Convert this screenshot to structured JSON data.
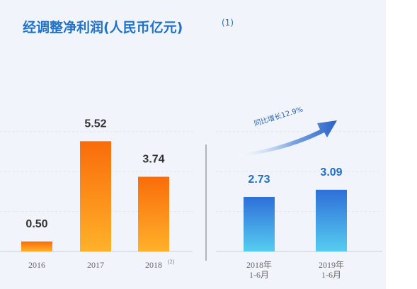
{
  "title": "经调整净利润(人民币亿元)",
  "title_note": "(1)",
  "chart_data": [
    {
      "type": "bar",
      "categories": [
        "2016",
        "2017",
        "2018"
      ],
      "values": [
        0.5,
        5.52,
        3.74
      ],
      "value_labels": [
        "0.50",
        "5.52",
        "3.74"
      ],
      "category_notes": [
        "",
        "",
        "(2)"
      ],
      "ylim": [
        0,
        6
      ],
      "grid": true
    },
    {
      "type": "bar",
      "categories": [
        "2018年\n1-6月",
        "2019年\n1-6月"
      ],
      "values": [
        2.73,
        3.09
      ],
      "value_labels": [
        "2.73",
        "3.09"
      ],
      "ylim": [
        0,
        6
      ],
      "grid": true,
      "annotation": "同比增长12.9%"
    }
  ],
  "colors": {
    "orange_top": "#f96c0a",
    "orange_bottom": "#ffb12a",
    "blue_top": "#2f6fd9",
    "blue_bottom": "#56cdf0",
    "title": "#1f72c9",
    "divider": "#9aa0a8"
  }
}
